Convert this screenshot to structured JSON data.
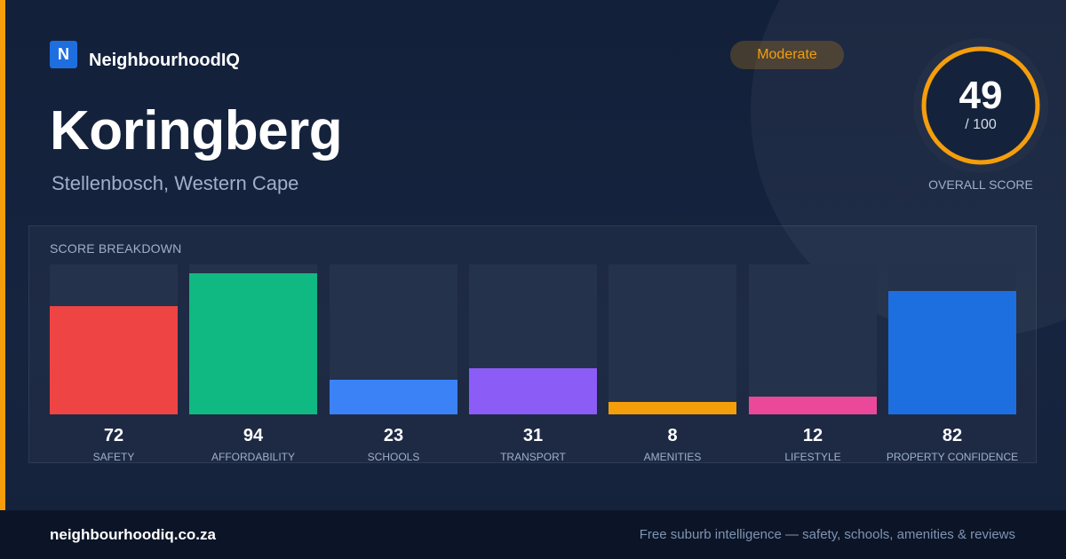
{
  "brand": {
    "logo_letter": "N",
    "name": "NeighbourhoodIQ"
  },
  "suburb": {
    "name": "Koringberg",
    "location": "Stellenbosch, Western Cape"
  },
  "rating": {
    "label": "Moderate",
    "color": "#f59e0b"
  },
  "overall": {
    "value": "49",
    "max": "/ 100",
    "label": "OVERALL SCORE",
    "fraction": 0.49
  },
  "breakdown": {
    "title": "SCORE BREAKDOWN",
    "items": [
      {
        "value": "72",
        "label": "SAFETY",
        "color": "#ef4444"
      },
      {
        "value": "94",
        "label": "AFFORDABILITY",
        "color": "#10b981"
      },
      {
        "value": "23",
        "label": "SCHOOLS",
        "color": "#3b82f6"
      },
      {
        "value": "31",
        "label": "TRANSPORT",
        "color": "#8b5cf6"
      },
      {
        "value": "8",
        "label": "AMENITIES",
        "color": "#f59e0b"
      },
      {
        "value": "12",
        "label": "LIFESTYLE",
        "color": "#ec4899"
      },
      {
        "value": "82",
        "label": "PROPERTY CONFIDENCE",
        "color": "#1d6fe0"
      }
    ]
  },
  "footer": {
    "site": "neighbourhoodiq.co.za",
    "tagline": "Free suburb intelligence — safety, schools, amenities & reviews"
  }
}
